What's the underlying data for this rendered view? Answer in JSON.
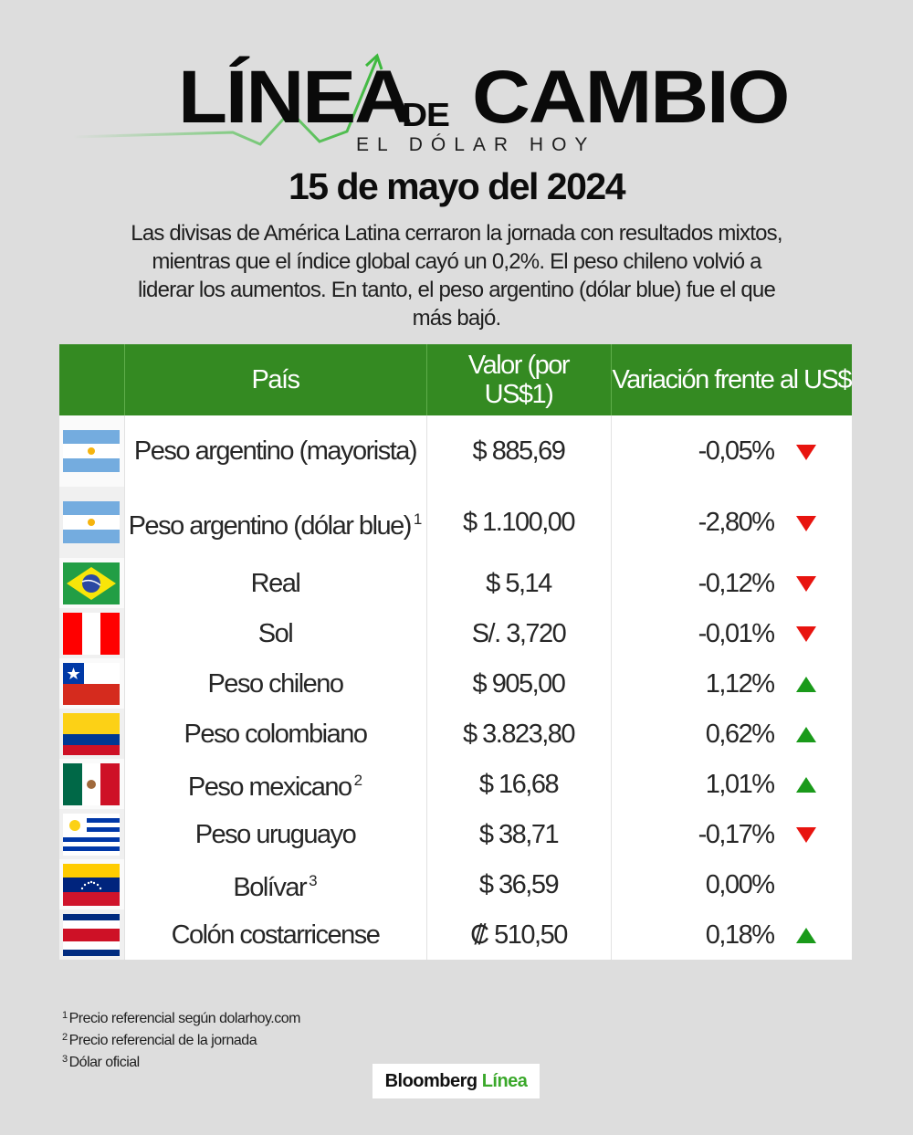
{
  "header": {
    "logo_word_1": "LÍNEA",
    "logo_word_2": "DE",
    "logo_word_3": "CAMBIO",
    "logo_subtitle": "EL DÓLAR HOY",
    "date": "15 de mayo del 2024",
    "intro": "Las divisas de América Latina cerraron la jornada con resultados mixtos, mientras que el índice global cayó un 0,2%. El peso chileno volvió a liderar los aumentos. En tanto, el peso argentino (dólar blue) fue el que más bajó."
  },
  "table": {
    "columns": [
      "",
      "País",
      "Valor (por US$1)",
      "Variación frente al US$"
    ],
    "rows": [
      {
        "flag": "argentina-flag",
        "name": "Peso argentino (mayorista)",
        "footnote": "",
        "value": "$ 885,69",
        "variation": "-0,05%",
        "trend": "down"
      },
      {
        "flag": "argentina-flag",
        "name": "Peso argentino (dólar blue)",
        "footnote": "1",
        "value": "$ 1.100,00",
        "variation": "-2,80%",
        "trend": "down"
      },
      {
        "flag": "brazil-flag",
        "name": "Real",
        "footnote": "",
        "value": "$ 5,14",
        "variation": "-0,12%",
        "trend": "down"
      },
      {
        "flag": "peru-flag",
        "name": "Sol",
        "footnote": "",
        "value": "S/. 3,720",
        "variation": "-0,01%",
        "trend": "down"
      },
      {
        "flag": "chile-flag",
        "name": "Peso chileno",
        "footnote": "",
        "value": "$ 905,00",
        "variation": "1,12%",
        "trend": "up"
      },
      {
        "flag": "colombia-flag",
        "name": "Peso colombiano",
        "footnote": "",
        "value": "$ 3.823,80",
        "variation": "0,62%",
        "trend": "up"
      },
      {
        "flag": "mexico-flag",
        "name": "Peso mexicano",
        "footnote": "2",
        "value": "$ 16,68",
        "variation": "1,01%",
        "trend": "up"
      },
      {
        "flag": "uruguay-flag",
        "name": "Peso uruguayo",
        "footnote": "",
        "value": "$ 38,71",
        "variation": "-0,17%",
        "trend": "down"
      },
      {
        "flag": "venezuela-flag",
        "name": "Bolívar",
        "footnote": "3",
        "value": "$ 36,59",
        "variation": "0,00%",
        "trend": "none"
      },
      {
        "flag": "costa-rica-flag",
        "name": "Colón costarricense",
        "footnote": "",
        "value": "₡ 510,50",
        "variation": "0,18%",
        "trend": "up"
      }
    ]
  },
  "footnotes": [
    {
      "mark": "1",
      "text": "Precio referencial según dolarhoy.com"
    },
    {
      "mark": "2",
      "text": "Precio referencial de la jornada"
    },
    {
      "mark": "3",
      "text": "Dólar oficial"
    }
  ],
  "brand": {
    "part1": "Bloomberg",
    "part2": "Línea"
  },
  "colors": {
    "background": "#dddddd",
    "header_green": "#348a22",
    "up_green": "#1a9a1a",
    "down_red": "#e8140f",
    "brand_green": "#3aa82a"
  }
}
